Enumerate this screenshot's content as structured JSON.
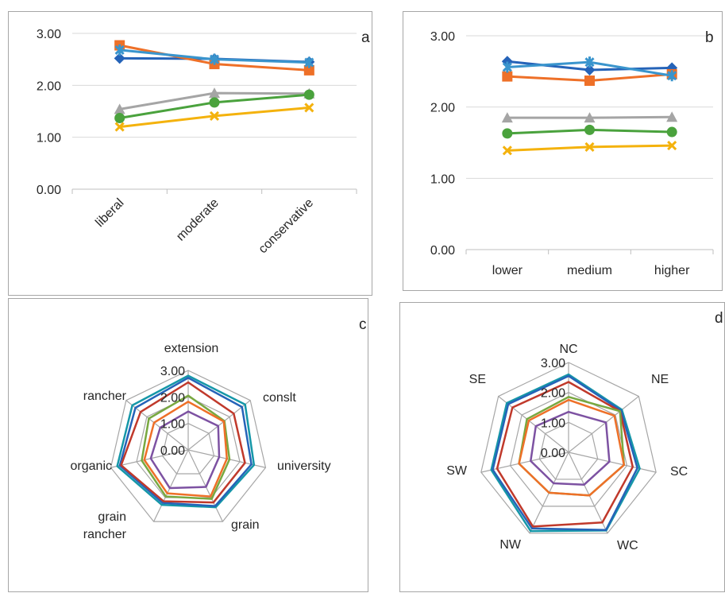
{
  "colors": {
    "darkblue": "#2563b8",
    "orange": "#ee7028",
    "gray": "#a5a5a5",
    "yellow": "#f4b20d",
    "lightblue": "#3a95cd",
    "green": "#4aa23d",
    "red": "#c0392b",
    "olive": "#78a840",
    "purple": "#7d52a2",
    "teal": "#1597a8",
    "frame": "#a6a6a6"
  },
  "chart_data": [
    {
      "id": "a",
      "panel_label": "a",
      "type": "line",
      "categories": [
        "liberal",
        "moderate",
        "conservative"
      ],
      "ylim": [
        0,
        3
      ],
      "yticks": [
        "0.00",
        "1.00",
        "2.00",
        "3.00"
      ],
      "grid": "horizontal",
      "series": [
        {
          "color": "darkblue",
          "marker": "diamond",
          "values": [
            2.52,
            2.51,
            2.45
          ]
        },
        {
          "color": "orange",
          "marker": "square",
          "values": [
            2.77,
            2.41,
            2.29
          ]
        },
        {
          "color": "gray",
          "marker": "triangle",
          "values": [
            1.54,
            1.85,
            1.84
          ]
        },
        {
          "color": "yellow",
          "marker": "x",
          "values": [
            1.2,
            1.41,
            1.57
          ]
        },
        {
          "color": "lightblue",
          "marker": "star",
          "values": [
            2.68,
            2.5,
            2.44
          ]
        },
        {
          "color": "green",
          "marker": "circle",
          "values": [
            1.37,
            1.67,
            1.82
          ]
        }
      ]
    },
    {
      "id": "b",
      "panel_label": "b",
      "type": "line",
      "categories": [
        "lower",
        "medium",
        "higher"
      ],
      "ylim": [
        0,
        3
      ],
      "yticks": [
        "0.00",
        "1.00",
        "2.00",
        "3.00"
      ],
      "grid": "horizontal",
      "series": [
        {
          "color": "darkblue",
          "marker": "diamond",
          "values": [
            2.64,
            2.52,
            2.55
          ]
        },
        {
          "color": "orange",
          "marker": "square",
          "values": [
            2.43,
            2.37,
            2.46
          ]
        },
        {
          "color": "gray",
          "marker": "triangle",
          "values": [
            1.85,
            1.85,
            1.86
          ]
        },
        {
          "color": "yellow",
          "marker": "x",
          "values": [
            1.39,
            1.44,
            1.46
          ]
        },
        {
          "color": "lightblue",
          "marker": "star",
          "values": [
            2.56,
            2.63,
            2.44
          ]
        },
        {
          "color": "green",
          "marker": "circle",
          "values": [
            1.63,
            1.68,
            1.65
          ]
        }
      ]
    },
    {
      "id": "c",
      "panel_label": "c",
      "type": "radar",
      "axes": [
        "extension",
        "conslt",
        "university",
        "grain",
        "grain rancher",
        "organic",
        "rancher"
      ],
      "axis_labels": [
        "extension",
        "conslt",
        "university",
        "grain",
        "grain\nrancher",
        "organic",
        "rancher"
      ],
      "rlim": [
        0,
        3
      ],
      "rticks": [
        "0.00",
        "1.00",
        "2.00",
        "3.00"
      ],
      "series": [
        {
          "color": "teal",
          "values": [
            2.8,
            2.75,
            2.55,
            2.4,
            2.3,
            2.75,
            2.7
          ]
        },
        {
          "color": "darkblue",
          "values": [
            2.72,
            2.6,
            2.45,
            2.35,
            2.22,
            2.65,
            2.55
          ]
        },
        {
          "color": "red",
          "values": [
            2.55,
            2.2,
            2.2,
            2.2,
            2.15,
            2.6,
            2.3
          ]
        },
        {
          "color": "olive",
          "values": [
            2.05,
            1.75,
            1.6,
            2.05,
            1.95,
            1.8,
            1.9
          ]
        },
        {
          "color": "orange",
          "values": [
            1.82,
            1.72,
            1.5,
            1.95,
            1.82,
            1.7,
            1.65
          ]
        },
        {
          "color": "purple",
          "values": [
            1.45,
            1.45,
            1.2,
            1.55,
            1.6,
            1.45,
            1.35
          ]
        }
      ]
    },
    {
      "id": "d",
      "panel_label": "d",
      "type": "radar",
      "axes": [
        "NC",
        "NE",
        "SC",
        "WC",
        "NW",
        "SW",
        "SE"
      ],
      "axis_labels": [
        "NC",
        "NE",
        "SC",
        "WC",
        "NW",
        "SW",
        "SE"
      ],
      "rlim": [
        0,
        3
      ],
      "rticks": [
        "0.00",
        "1.00",
        "2.00",
        "3.00"
      ],
      "series": [
        {
          "color": "teal",
          "values": [
            2.6,
            2.28,
            2.44,
            2.9,
            2.92,
            2.65,
            2.64
          ]
        },
        {
          "color": "darkblue",
          "values": [
            2.55,
            2.24,
            2.36,
            2.88,
            2.82,
            2.6,
            2.58
          ]
        },
        {
          "color": "red",
          "values": [
            2.35,
            2.2,
            2.2,
            2.6,
            2.75,
            2.45,
            2.4
          ]
        },
        {
          "color": "olive",
          "values": [
            1.85,
            2.2,
            1.9,
            1.6,
            1.5,
            1.7,
            1.78
          ]
        },
        {
          "color": "orange",
          "values": [
            1.75,
            1.96,
            1.9,
            1.6,
            1.5,
            1.7,
            1.7
          ]
        },
        {
          "color": "purple",
          "values": [
            1.35,
            1.6,
            1.4,
            1.2,
            1.15,
            1.3,
            1.4
          ]
        }
      ]
    }
  ]
}
